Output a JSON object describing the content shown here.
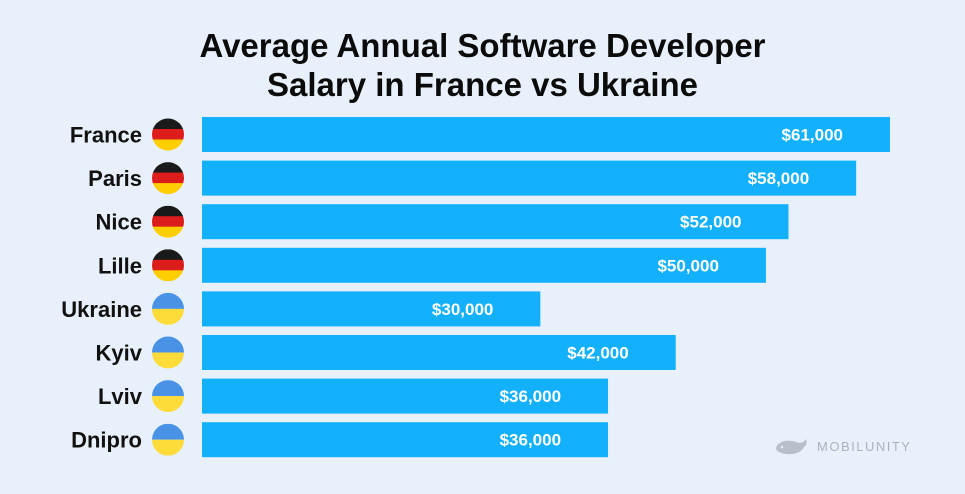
{
  "title": {
    "line1": "Average Annual Software Developer",
    "line2": "Salary in France vs Ukraine"
  },
  "chart_data": {
    "type": "bar",
    "orientation": "horizontal",
    "title": "Average Annual Software Developer Salary in France vs Ukraine",
    "categories": [
      "France",
      "Paris",
      "Nice",
      "Lille",
      "Ukraine",
      "Kyiv",
      "Lviv",
      "Dnipro"
    ],
    "values": [
      61000,
      58000,
      52000,
      50000,
      30000,
      42000,
      36000,
      36000
    ],
    "labels": [
      "$61,000",
      "$58,000",
      "$52,000",
      "$50,000",
      "$30,000",
      "$42,000",
      "$36,000",
      "$36,000"
    ],
    "flags": [
      "germany-flag-icon",
      "germany-flag-icon",
      "germany-flag-icon",
      "germany-flag-icon",
      "ukraine-flag-icon",
      "ukraine-flag-icon",
      "ukraine-flag-icon",
      "ukraine-flag-icon"
    ],
    "xlabel": "",
    "ylabel": "",
    "colors": {
      "bar": "#13b1fb",
      "label": "#ffffff"
    }
  },
  "logo": {
    "text": "MOBILUNITY"
  }
}
